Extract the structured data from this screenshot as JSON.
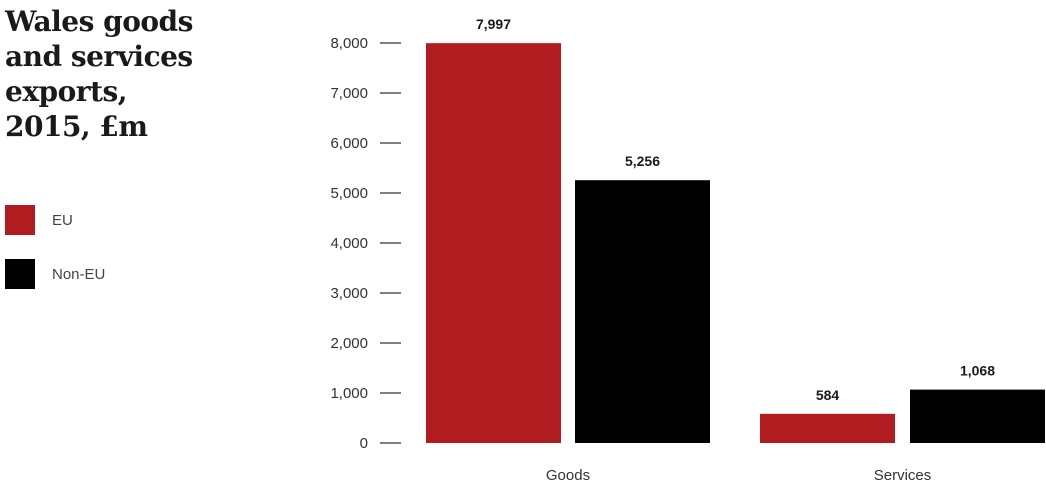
{
  "title": "Wales goods\nand services\nexports,\n2015, £m",
  "legend": [
    {
      "label": "EU",
      "color": "#b01c1f"
    },
    {
      "label": "Non-EU",
      "color": "#000000"
    }
  ],
  "chart_data": {
    "type": "bar",
    "title": "Wales goods and services exports, 2015, £m",
    "categories": [
      "Goods",
      "Services"
    ],
    "series": [
      {
        "name": "EU",
        "color": "#b01c1f",
        "values": [
          7997,
          584
        ],
        "labels": [
          "7,997",
          "584"
        ]
      },
      {
        "name": "Non-EU",
        "color": "#000000",
        "values": [
          5256,
          1068
        ],
        "labels": [
          "5,256",
          "1,068"
        ]
      }
    ],
    "yticks": [
      0,
      1000,
      2000,
      3000,
      4000,
      5000,
      6000,
      7000,
      8000
    ],
    "ytick_labels": [
      "0",
      "1,000",
      "2,000",
      "3,000",
      "4,000",
      "5,000",
      "6,000",
      "7,000",
      "8,000"
    ],
    "ylim": [
      0,
      8000
    ],
    "xlabel": "",
    "ylabel": "",
    "grid": false,
    "legend_position": "left"
  }
}
